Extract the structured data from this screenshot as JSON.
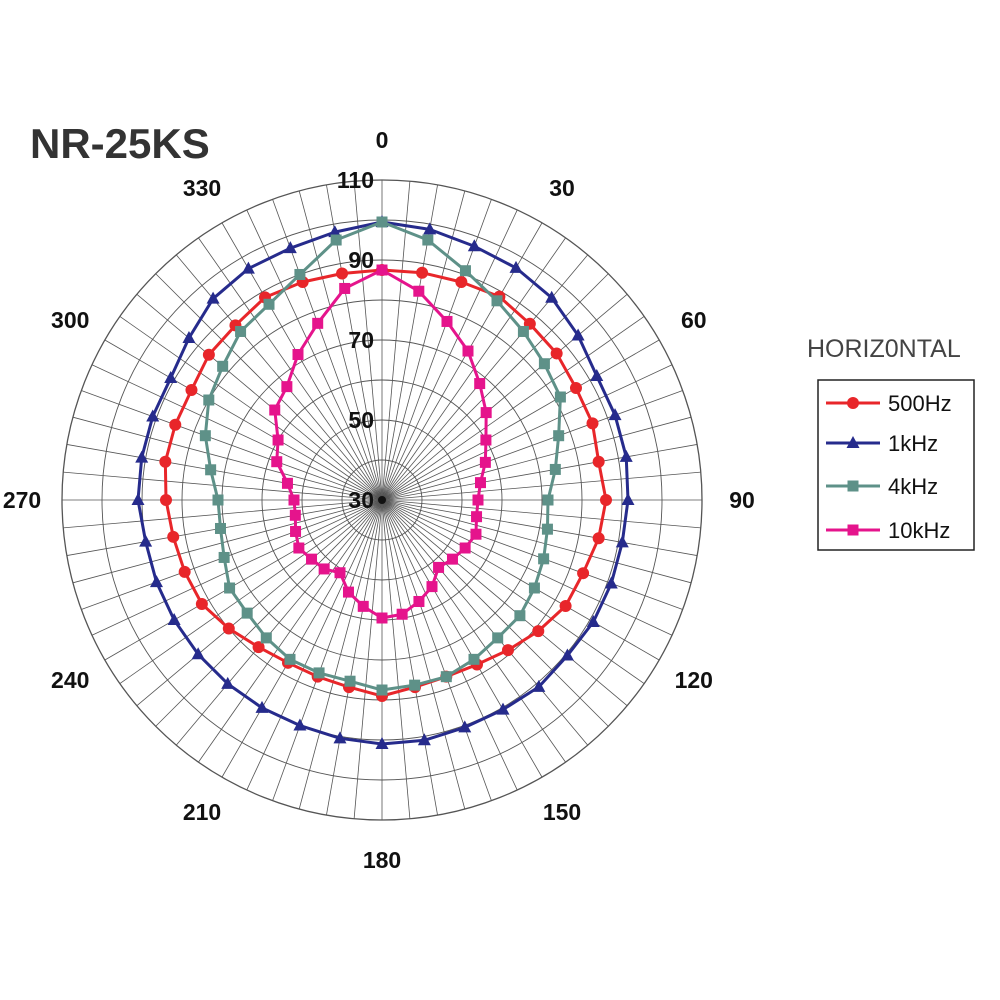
{
  "chart_data": {
    "type": "polar-line",
    "title": "NR-25KS",
    "legend_title": "HORIZ0NTAL",
    "legend_placement": "right",
    "radial_range": [
      30,
      110
    ],
    "radial_ticks": [
      30,
      50,
      70,
      90,
      110
    ],
    "radial_grid_step": 10,
    "angle_ticks": [
      0,
      30,
      60,
      90,
      120,
      150,
      180,
      210,
      240,
      270,
      300,
      330
    ],
    "angle_grid_step": 5,
    "angles": [
      0,
      10,
      20,
      30,
      40,
      50,
      60,
      70,
      80,
      90,
      100,
      110,
      120,
      130,
      140,
      150,
      160,
      170,
      180,
      190,
      200,
      210,
      220,
      230,
      240,
      250,
      260,
      270,
      280,
      290,
      300,
      310,
      320,
      330,
      340,
      350
    ],
    "series": [
      {
        "name": "500Hz",
        "color": "#e8262a",
        "marker": "circle",
        "values": [
          87.5,
          87.7,
          88,
          88.7,
          87.5,
          87,
          86,
          86,
          85,
          86,
          85,
          83.5,
          83,
          81,
          79,
          77.5,
          77,
          77.5,
          79,
          77.5,
          77,
          77,
          78,
          80,
          82,
          82.5,
          83,
          84,
          85,
          85,
          85,
          86.5,
          87,
          88.5,
          88,
          87.5
        ]
      },
      {
        "name": "1kHz",
        "color": "#262b8c",
        "marker": "triangle",
        "values": [
          99.5,
          98.7,
          97.5,
          97,
          96,
          94,
          92,
          92,
          92,
          91.5,
          91,
          91,
          91,
          90.5,
          91,
          90.5,
          90.5,
          91,
          91,
          90.5,
          90,
          90,
          90,
          90,
          90,
          90,
          90,
          91,
          91,
          91,
          91,
          93,
          95.7,
          96.8,
          97,
          98
        ]
      },
      {
        "name": "4kHz",
        "color": "#5e9188",
        "marker": "square",
        "values": [
          99.5,
          96,
          91,
          87.5,
          85,
          83,
          81.5,
          77,
          74,
          71.5,
          72,
          73,
          74,
          75,
          75,
          76,
          77,
          77,
          77.5,
          76,
          76,
          76,
          75,
          74,
          74,
          72,
          71,
          71,
          73.5,
          77,
          80,
          82,
          85,
          86.5,
          90,
          96
        ]
      },
      {
        "name": "10kHz",
        "color": "#e5148c",
        "marker": "square",
        "values": [
          87.5,
          83,
          77.5,
          73,
          68,
          64,
          60,
          57.5,
          55,
          54,
          54,
          55,
          54,
          53,
          52,
          55,
          57,
          59,
          59.5,
          57,
          54.5,
          51,
          52.5,
          53,
          54,
          53,
          52,
          52,
          54,
          58,
          60,
          65,
          67,
          72,
          77,
          83.7
        ]
      }
    ]
  }
}
